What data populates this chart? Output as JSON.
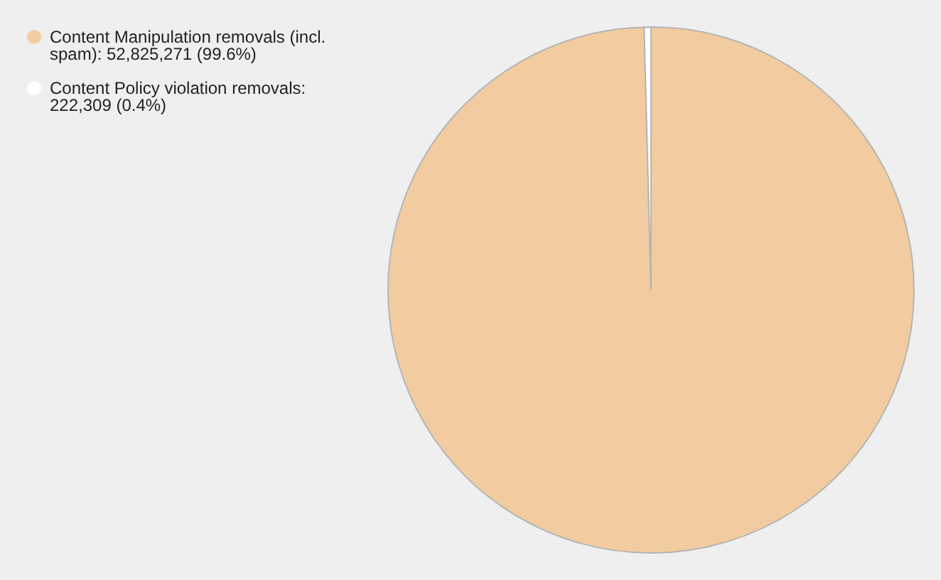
{
  "chart_data": {
    "type": "pie",
    "categories": [
      "Content Manipulation removals (incl. spam): 52,825,271 (99.6%)",
      "Content Policy violation removals: 222,309 (0.4%)"
    ],
    "values": [
      52825271,
      222309
    ],
    "colors": [
      "#f2cca0",
      "#ffffff"
    ],
    "legend": "top left"
  }
}
